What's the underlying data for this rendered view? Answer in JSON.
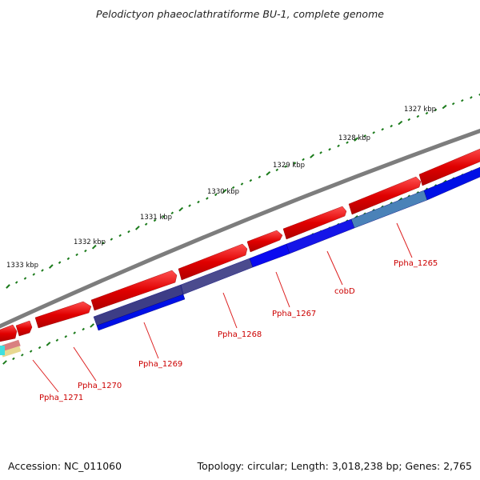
{
  "title": "Pelodictyon phaeoclathratiforme BU-1, complete genome",
  "footer": {
    "accession": "Accession: NC_011060",
    "summary": "Topology: circular; Length: 3,018,238 bp; Genes: 2,765"
  },
  "ruler_labels": [
    "1333 kbp",
    "1332 kbp",
    "1331 kbp",
    "1330 kbp",
    "1329 kbp",
    "1328 kbp",
    "1327 kbp"
  ],
  "gene_labels": [
    "Ppha_1271",
    "Ppha_1270",
    "Ppha_1269",
    "Ppha_1268",
    "Ppha_1267",
    "cobD",
    "Ppha_1265"
  ],
  "colors": {
    "backbone": "#808080",
    "forward_gene": "#e00000",
    "reverse_gene": "#0000dd",
    "label": "#cc0000",
    "tick": "#1a7a1a"
  }
}
